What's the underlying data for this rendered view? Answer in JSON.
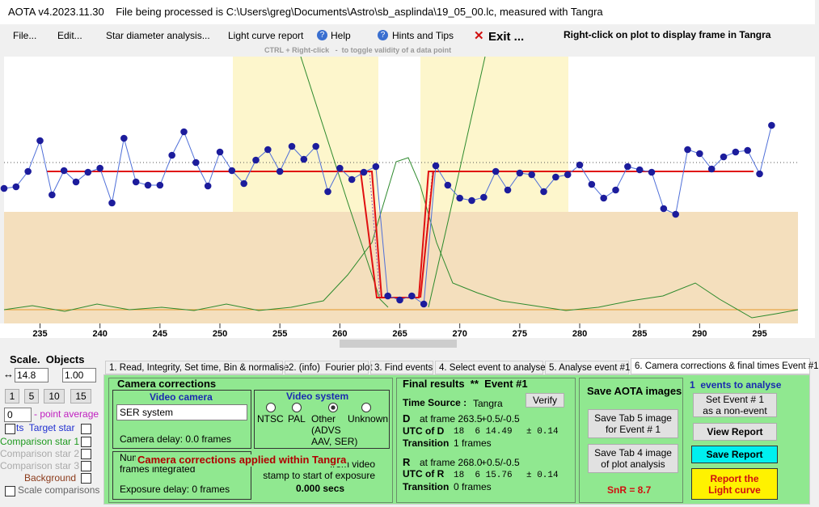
{
  "title_bar": "AOTA v4.2023.11.30    File being processed is C:\\Users\\greg\\Documents\\Astro\\sb_asplinda\\19_05_00.lc, measured with Tangra",
  "menu": {
    "items": [
      "File...",
      "Edit...",
      "Star diameter analysis...",
      "Light curve report",
      "Help",
      "Hints and Tips",
      "Exit ..."
    ],
    "note": "Right-click on plot to display frame in Tangra"
  },
  "plot": {
    "hint": "CTRL + Right-click   -  to toggle validity of a data point",
    "xlim": [
      232,
      298.2
    ],
    "ylim": [
      0,
      330
    ],
    "xticks": [
      235,
      240,
      245,
      250,
      255,
      260,
      265,
      270,
      275,
      280,
      285,
      290,
      295
    ],
    "x": [
      232,
      233,
      234,
      235,
      236,
      237,
      238,
      239,
      240,
      241,
      242,
      243,
      244,
      245,
      246,
      247,
      248,
      249,
      250,
      251,
      252,
      253,
      254,
      255,
      256,
      257,
      258,
      259,
      260,
      261,
      262,
      263,
      264,
      265,
      266,
      267,
      268,
      269,
      270,
      271,
      272,
      273,
      274,
      275,
      276,
      277,
      278,
      279,
      280,
      281,
      282,
      283,
      284,
      285,
      286,
      287,
      288,
      289,
      290,
      291,
      292,
      293,
      294,
      295,
      296
    ],
    "values": [
      167,
      169,
      188,
      226,
      159,
      189,
      175,
      187,
      192,
      149,
      229,
      175,
      171,
      171,
      208,
      237,
      199,
      170,
      212,
      189,
      173,
      202,
      215,
      188,
      219,
      203,
      219,
      163,
      192,
      178,
      187,
      194,
      34,
      29,
      34,
      24,
      195,
      171,
      155,
      152,
      156,
      188,
      165,
      186,
      184,
      163,
      181,
      184,
      196,
      172,
      155,
      165,
      194,
      190,
      187,
      142,
      135,
      215,
      210,
      191,
      206,
      212,
      214,
      185,
      245
    ]
  },
  "left_panel": {
    "heading": "Scale.  Objects",
    "scale": "14.8",
    "factor": "1.00",
    "buttons": [
      "1",
      "5",
      "10",
      "15"
    ],
    "average": "0",
    "average_label": "- point average",
    "checks": [
      "ts  Target star",
      "Comparison star 1",
      "Comparison star 2",
      "Comparison star 3",
      "Background",
      "Scale comparisons"
    ]
  },
  "tabs": [
    "1. Read, Integrity, Set time, Bin & normalise",
    "2. (info)  Fourier plot",
    "3. Find events",
    "4. Select event to analyse",
    "5. Analyse event #1",
    "6. Camera corrections & final times Event #1"
  ],
  "camera": {
    "title": "Camera corrections",
    "video_camera": "Video camera",
    "camera_select": "SER system",
    "camera_delay": "Camera delay: 0.0 frames",
    "video_system": "Video system",
    "systems": [
      "NTSC",
      "PAL",
      "Other\n(ADVS\nAAV, SER)",
      "Unknown"
    ],
    "frames_integrated": "Num\nframes integrated",
    "overlay": "Camera corrections applied within Tangra",
    "stamp": "from video\nstamp to start of exposure",
    "stamp_value": "0.000 secs",
    "exposure_delay": "Exposure delay: 0 frames"
  },
  "results": {
    "title": "Final results  **  Event #1",
    "verify": "Verify",
    "time_source": "Time Source :",
    "source": "Tangra",
    "D": {
      "label": "D",
      "frame": "at frame 263.5",
      "unc": "+0.5/-0.5",
      "utc_label": "UTC of D",
      "utc": "18  6 14.49",
      "err": "± 0.14",
      "trans_label": "Transition",
      "trans": "1 frames"
    },
    "R": {
      "label": "R",
      "frame": "at frame 268.0",
      "unc": "+0.5/-0.5",
      "utc_label": "UTC of R",
      "utc": "18  6 15.76",
      "err": "± 0.14",
      "trans_label": "Transition",
      "trans": "0 frames"
    }
  },
  "save": {
    "title": "Save AOTA images",
    "tab5": "Save Tab 5 image\nfor Event # 1",
    "tab4": "Save Tab 4 image\nof plot analysis",
    "snr": "SnR = 8.7"
  },
  "events": {
    "title": "1  events to analyse",
    "set": "Set Event # 1\nas a non-event",
    "view": "View Report",
    "save": "Save Report",
    "report": "Report the\nLight curve"
  }
}
